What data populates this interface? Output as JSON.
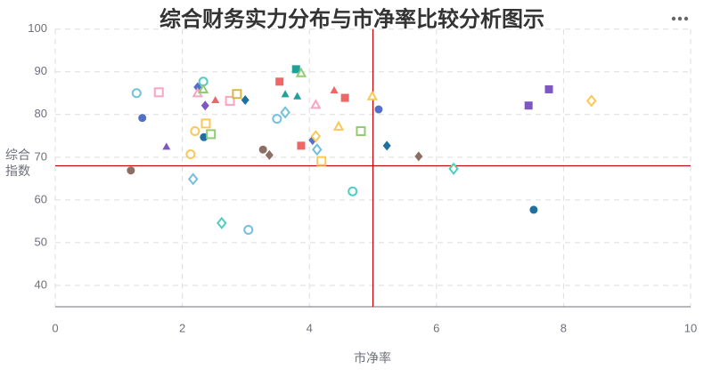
{
  "chart_data": {
    "type": "scatter",
    "title": "综合财务实力分布与市净率比较分析图示",
    "x_label": "市净率",
    "y_label": "综合指数",
    "x": [
      1.28,
      1.63,
      1.37,
      1.19,
      1.75,
      2.13,
      2.2,
      2.17,
      2.24,
      2.24,
      2.33,
      2.33,
      2.36,
      2.37,
      2.34,
      2.45,
      2.52,
      2.75,
      2.86,
      2.99,
      2.62,
      3.04,
      3.27,
      3.37,
      3.53,
      3.62,
      3.81,
      3.79,
      3.87,
      3.49,
      3.62,
      3.87,
      4.05,
      4.1,
      4.1,
      4.12,
      4.19,
      4.39,
      4.56,
      4.46,
      4.68,
      4.81,
      4.99,
      5.09,
      5.22,
      5.72,
      6.27,
      7.53,
      7.45,
      7.77,
      8.44
    ],
    "y": [
      85.0,
      85.2,
      79.2,
      66.9,
      72.5,
      70.7,
      76.1,
      64.9,
      86.4,
      85.0,
      87.7,
      85.9,
      82.1,
      77.9,
      74.7,
      75.4,
      83.4,
      83.2,
      84.8,
      83.4,
      54.6,
      53.0,
      71.8,
      70.5,
      87.7,
      84.8,
      84.3,
      90.6,
      89.7,
      79.0,
      80.5,
      72.7,
      74.0,
      74.9,
      82.3,
      71.8,
      69.1,
      85.7,
      83.9,
      77.2,
      62.0,
      76.1,
      84.3,
      81.2,
      72.7,
      70.2,
      67.3,
      57.7,
      82.1,
      85.9,
      83.2
    ],
    "colors": [
      "#73c0de",
      "#f8a5c2",
      "#5470c6",
      "#8d6e63",
      "#7e57c2",
      "#fac858",
      "#fac858",
      "#73c0de",
      "#5470c6",
      "#f8a5c2",
      "#4ecdc4",
      "#91cc75",
      "#7e57c2",
      "#fac858",
      "#1f6f9f",
      "#91cc75",
      "#ee6666",
      "#f8a5c2",
      "#d4b84a",
      "#1f6f9f",
      "#4ecdc4",
      "#73c0de",
      "#8d6e63",
      "#8d6e63",
      "#ee6666",
      "#21a19a",
      "#21a19a",
      "#21a19a",
      "#91cc75",
      "#73c0de",
      "#73c0de",
      "#ee6666",
      "#5470c6",
      "#fac858",
      "#f8a5c2",
      "#73c0de",
      "#fac858",
      "#ee6666",
      "#ee6666",
      "#fac858",
      "#4ecdc4",
      "#91cc75",
      "#fac858",
      "#5470c6",
      "#1f6f9f",
      "#8d6e63",
      "#4ecdc4",
      "#1f6f9f",
      "#7e57c2",
      "#7e57c2",
      "#fac858"
    ],
    "symbols": [
      "emptyCircle",
      "emptyRect",
      "circle",
      "circle",
      "triangle",
      "emptyCircle",
      "emptyCircle",
      "emptyDiamond",
      "diamond",
      "emptyTriangle",
      "emptyCircle",
      "emptyTriangle",
      "diamond",
      "emptyRect",
      "circle",
      "emptyRect",
      "triangle",
      "emptyRect",
      "emptyRect",
      "diamond",
      "emptyDiamond",
      "emptyCircle",
      "circle",
      "diamond",
      "rect",
      "triangle",
      "triangle",
      "rect",
      "emptyTriangle",
      "emptyCircle",
      "emptyDiamond",
      "rect",
      "diamond",
      "emptyDiamond",
      "emptyTriangle",
      "emptyDiamond",
      "emptyRect",
      "triangle",
      "rect",
      "emptyTriangle",
      "emptyCircle",
      "emptyRect",
      "emptyTriangle",
      "circle",
      "diamond",
      "diamond",
      "emptyDiamond",
      "circle",
      "rect",
      "rect",
      "emptyDiamond"
    ],
    "reference_x": 5,
    "reference_y": 68,
    "reference_color": "#c00000",
    "xlim": [
      0,
      10
    ],
    "xticks": [
      0,
      2,
      4,
      6,
      8,
      10
    ],
    "ylim": [
      35,
      100
    ],
    "yticks": [
      40,
      50,
      60,
      70,
      80,
      90,
      100
    ],
    "grid": true
  }
}
